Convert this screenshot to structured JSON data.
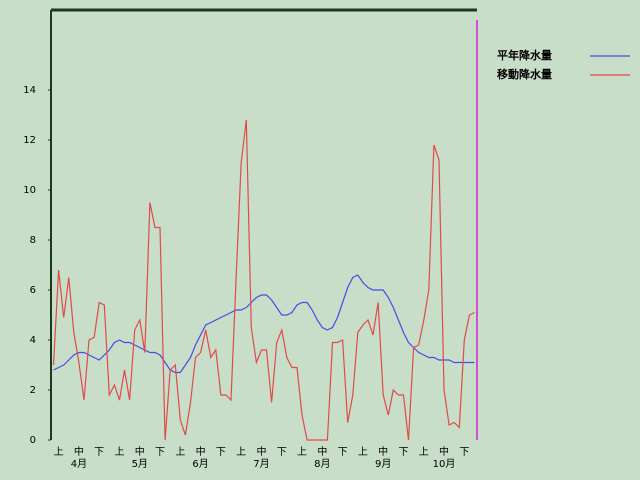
{
  "chart_data": {
    "type": "line",
    "categories": [
      null,
      "上",
      null,
      null,
      null,
      "中",
      null,
      null,
      null,
      "下",
      null,
      null,
      null,
      "上",
      null,
      null,
      null,
      "中",
      null,
      null,
      null,
      "下",
      null,
      null,
      null,
      "上",
      null,
      null,
      null,
      "中",
      null,
      null,
      null,
      "下",
      null,
      null,
      null,
      "上",
      null,
      null,
      null,
      "中",
      null,
      null,
      null,
      "下",
      null,
      null,
      null,
      "上",
      null,
      null,
      null,
      "中",
      null,
      null,
      null,
      "下",
      null,
      null,
      null,
      "上",
      null,
      null,
      null,
      "中",
      null,
      null,
      null,
      "下",
      null,
      null,
      null,
      "上",
      null,
      null,
      null,
      "中",
      null,
      null,
      null,
      "下",
      null,
      null
    ],
    "months": [
      "4月",
      "5月",
      "6月",
      "7月",
      "8月",
      "9月",
      "10月"
    ],
    "series": [
      {
        "name": "平年降水量",
        "color": "#4a4ae6",
        "values": [
          2.8,
          2.9,
          3.0,
          3.2,
          3.4,
          3.5,
          3.5,
          3.4,
          3.3,
          3.2,
          3.4,
          3.6,
          3.9,
          4.0,
          3.9,
          3.9,
          3.8,
          3.7,
          3.6,
          3.5,
          3.5,
          3.4,
          3.1,
          2.8,
          2.7,
          2.7,
          3.0,
          3.3,
          3.8,
          4.2,
          4.6,
          4.7,
          4.8,
          4.9,
          5.0,
          5.1,
          5.2,
          5.2,
          5.3,
          5.5,
          5.7,
          5.8,
          5.8,
          5.6,
          5.3,
          5.0,
          5.0,
          5.1,
          5.4,
          5.5,
          5.5,
          5.2,
          4.8,
          4.5,
          4.4,
          4.5,
          4.9,
          5.5,
          6.1,
          6.5,
          6.6,
          6.3,
          6.1,
          6.0,
          6.0,
          6.0,
          5.7,
          5.3,
          4.8,
          4.3,
          3.9,
          3.7,
          3.5,
          3.4,
          3.3,
          3.3,
          3.2,
          3.2,
          3.2,
          3.1,
          3.1,
          3.1,
          3.1,
          3.1
        ]
      },
      {
        "name": "移動降水量",
        "color": "#e04a4a",
        "values": [
          3.0,
          6.8,
          4.9,
          6.5,
          4.3,
          3.1,
          1.6,
          4.0,
          4.1,
          5.5,
          5.4,
          1.8,
          2.2,
          1.6,
          2.8,
          1.6,
          4.4,
          4.8,
          3.5,
          9.5,
          8.5,
          8.5,
          0,
          2.8,
          3.0,
          0.8,
          0.2,
          1.5,
          3.3,
          3.5,
          4.4,
          3.3,
          3.6,
          1.8,
          1.8,
          1.6,
          6.5,
          11.1,
          12.8,
          4.5,
          3.1,
          3.6,
          3.6,
          1.5,
          3.9,
          4.4,
          3.3,
          2.9,
          2.9,
          1.0,
          0,
          0,
          0,
          0,
          0,
          3.9,
          3.9,
          4.0,
          0.7,
          1.8,
          4.3,
          4.6,
          4.8,
          4.2,
          5.5,
          1.8,
          1.0,
          2.0,
          1.8,
          1.8,
          0,
          3.7,
          3.8,
          4.8,
          6.0,
          11.8,
          11.2,
          2.0,
          0.6,
          0.7,
          0.5,
          4.0,
          5.0,
          5.1
        ]
      }
    ],
    "ylim": [
      0,
      17.2
    ],
    "yticks": [
      0,
      2,
      4,
      6,
      8,
      10,
      12,
      14
    ]
  }
}
